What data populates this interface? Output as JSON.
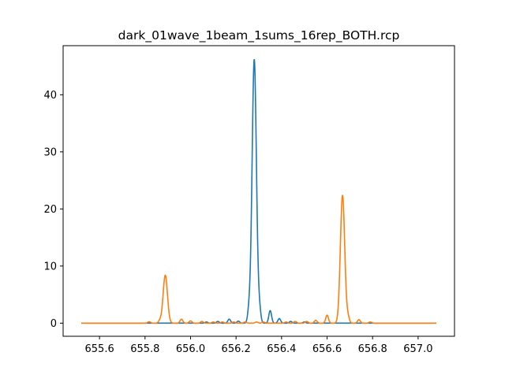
{
  "chart_data": {
    "type": "line",
    "title": "dark_01wave_1beam_1sums_16rep_BOTH.rcp",
    "xlabel": "",
    "ylabel": "",
    "xlim": [
      655.44,
      657.16
    ],
    "ylim": [
      -2.3,
      48.6
    ],
    "grid": false,
    "x_ticks": [
      655.6,
      655.8,
      656.0,
      656.2,
      656.4,
      656.6,
      656.8,
      657.0
    ],
    "x_tick_labels": [
      "655.6",
      "655.8",
      "656.0",
      "656.2",
      "656.4",
      "656.6",
      "656.8",
      "657.0"
    ],
    "y_ticks": [
      0,
      10,
      20,
      30,
      40
    ],
    "y_tick_labels": [
      "0",
      "10",
      "20",
      "30",
      "40"
    ],
    "x_start": 655.52,
    "x_end": 657.08,
    "series": [
      {
        "color": "#1f77b4",
        "baseline": 0.0,
        "peaks": [
          {
            "x": 656.28,
            "height": 46.2,
            "width": 0.0095
          },
          {
            "x": 656.257,
            "height": 2.1,
            "width": 0.006
          },
          {
            "x": 656.303,
            "height": 2.1,
            "width": 0.006
          },
          {
            "x": 656.21,
            "height": 0.35,
            "width": 0.006
          },
          {
            "x": 656.35,
            "height": 2.2,
            "width": 0.006
          },
          {
            "x": 656.17,
            "height": 0.7,
            "width": 0.006
          },
          {
            "x": 656.39,
            "height": 0.8,
            "width": 0.006
          },
          {
            "x": 656.12,
            "height": 0.3,
            "width": 0.006
          },
          {
            "x": 656.44,
            "height": 0.3,
            "width": 0.006
          },
          {
            "x": 656.07,
            "height": 0.2,
            "width": 0.006
          },
          {
            "x": 656.5,
            "height": 0.2,
            "width": 0.006
          }
        ]
      },
      {
        "color": "#ff7f0e",
        "baseline": 0.0,
        "peaks": [
          {
            "x": 655.889,
            "height": 8.4,
            "width": 0.0095
          },
          {
            "x": 655.865,
            "height": 0.4,
            "width": 0.006
          },
          {
            "x": 655.818,
            "height": 0.25,
            "width": 0.006
          },
          {
            "x": 655.96,
            "height": 0.7,
            "width": 0.006
          },
          {
            "x": 656.0,
            "height": 0.4,
            "width": 0.006
          },
          {
            "x": 656.05,
            "height": 0.3,
            "width": 0.006
          },
          {
            "x": 656.1,
            "height": 0.2,
            "width": 0.006
          },
          {
            "x": 656.14,
            "height": 0.2,
            "width": 0.006
          },
          {
            "x": 656.19,
            "height": 0.2,
            "width": 0.006
          },
          {
            "x": 656.24,
            "height": 0.2,
            "width": 0.006
          },
          {
            "x": 656.29,
            "height": 0.2,
            "width": 0.006
          },
          {
            "x": 656.32,
            "height": 0.2,
            "width": 0.006
          },
          {
            "x": 656.42,
            "height": 0.2,
            "width": 0.006
          },
          {
            "x": 656.46,
            "height": 0.3,
            "width": 0.006
          },
          {
            "x": 656.51,
            "height": 0.3,
            "width": 0.006
          },
          {
            "x": 656.55,
            "height": 0.5,
            "width": 0.006
          },
          {
            "x": 656.6,
            "height": 1.4,
            "width": 0.006
          },
          {
            "x": 656.668,
            "height": 22.4,
            "width": 0.0095
          },
          {
            "x": 656.692,
            "height": 1.0,
            "width": 0.006
          },
          {
            "x": 656.74,
            "height": 0.6,
            "width": 0.006
          },
          {
            "x": 656.79,
            "height": 0.2,
            "width": 0.006
          }
        ]
      }
    ]
  }
}
